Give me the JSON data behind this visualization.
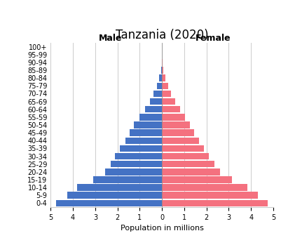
{
  "title": "Tanzania (2020)",
  "xlabel": "Population in millions",
  "male_label": "Male",
  "female_label": "Female",
  "age_groups": [
    "0-4",
    "5-9",
    "10-14",
    "15-19",
    "20-24",
    "25-29",
    "30-34",
    "35-39",
    "40-44",
    "45-49",
    "50-54",
    "55-59",
    "60-64",
    "65-69",
    "70-74",
    "75-79",
    "80-84",
    "85-89",
    "90-94",
    "95-99",
    "100+"
  ],
  "male_values": [
    4.75,
    4.25,
    3.8,
    3.1,
    2.55,
    2.3,
    2.1,
    1.9,
    1.65,
    1.45,
    1.25,
    1.0,
    0.75,
    0.55,
    0.38,
    0.22,
    0.12,
    0.05,
    0.02,
    0.005,
    0.002
  ],
  "female_values": [
    4.75,
    4.3,
    3.85,
    3.15,
    2.6,
    2.35,
    2.1,
    1.9,
    1.65,
    1.45,
    1.25,
    1.05,
    0.8,
    0.6,
    0.42,
    0.27,
    0.15,
    0.06,
    0.02,
    0.006,
    0.002
  ],
  "male_color": "#4472C4",
  "female_color": "#F4717F",
  "xlim": 5,
  "bar_height": 0.85,
  "title_fontsize": 12,
  "label_fontsize": 9,
  "tick_fontsize": 7,
  "axis_label_fontsize": 8,
  "grid_color": "#cccccc",
  "background_color": "#ffffff"
}
